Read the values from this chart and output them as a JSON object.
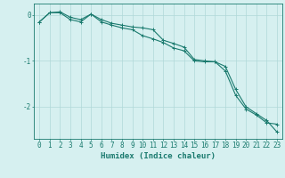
{
  "xlabel": "Humidex (Indice chaleur)",
  "x": [
    0,
    1,
    2,
    3,
    4,
    5,
    6,
    7,
    8,
    9,
    10,
    11,
    12,
    13,
    14,
    15,
    16,
    17,
    18,
    19,
    20,
    21,
    22,
    23
  ],
  "y_line1": [
    -0.15,
    0.05,
    0.07,
    -0.05,
    -0.1,
    0.02,
    -0.1,
    -0.18,
    -0.22,
    -0.26,
    -0.28,
    -0.32,
    -0.55,
    -0.62,
    -0.7,
    -0.97,
    -1.0,
    -1.02,
    -1.22,
    -1.75,
    -2.05,
    -2.18,
    -2.35,
    -2.38
  ],
  "y_line2": [
    -0.15,
    0.05,
    0.05,
    -0.1,
    -0.15,
    0.02,
    -0.15,
    -0.22,
    -0.28,
    -0.32,
    -0.45,
    -0.52,
    -0.6,
    -0.72,
    -0.78,
    -1.0,
    -1.02,
    -1.02,
    -1.12,
    -1.62,
    -2.0,
    -2.15,
    -2.3,
    -2.55
  ],
  "line_color": "#1a7a6e",
  "bg_color": "#d6f0f0",
  "grid_color": "#b0d8d8",
  "marker": "+",
  "markersize": 3,
  "linewidth": 0.8,
  "ylim": [
    -2.7,
    0.25
  ],
  "xlim": [
    -0.5,
    23.5
  ],
  "yticks": [
    0,
    -1,
    -2
  ],
  "xtick_labels": [
    "0",
    "1",
    "2",
    "3",
    "4",
    "5",
    "6",
    "7",
    "8",
    "9",
    "10",
    "11",
    "12",
    "13",
    "14",
    "15",
    "16",
    "17",
    "18",
    "19",
    "20",
    "21",
    "22",
    "23"
  ],
  "xlabel_fontsize": 6.5,
  "tick_fontsize": 5.5
}
